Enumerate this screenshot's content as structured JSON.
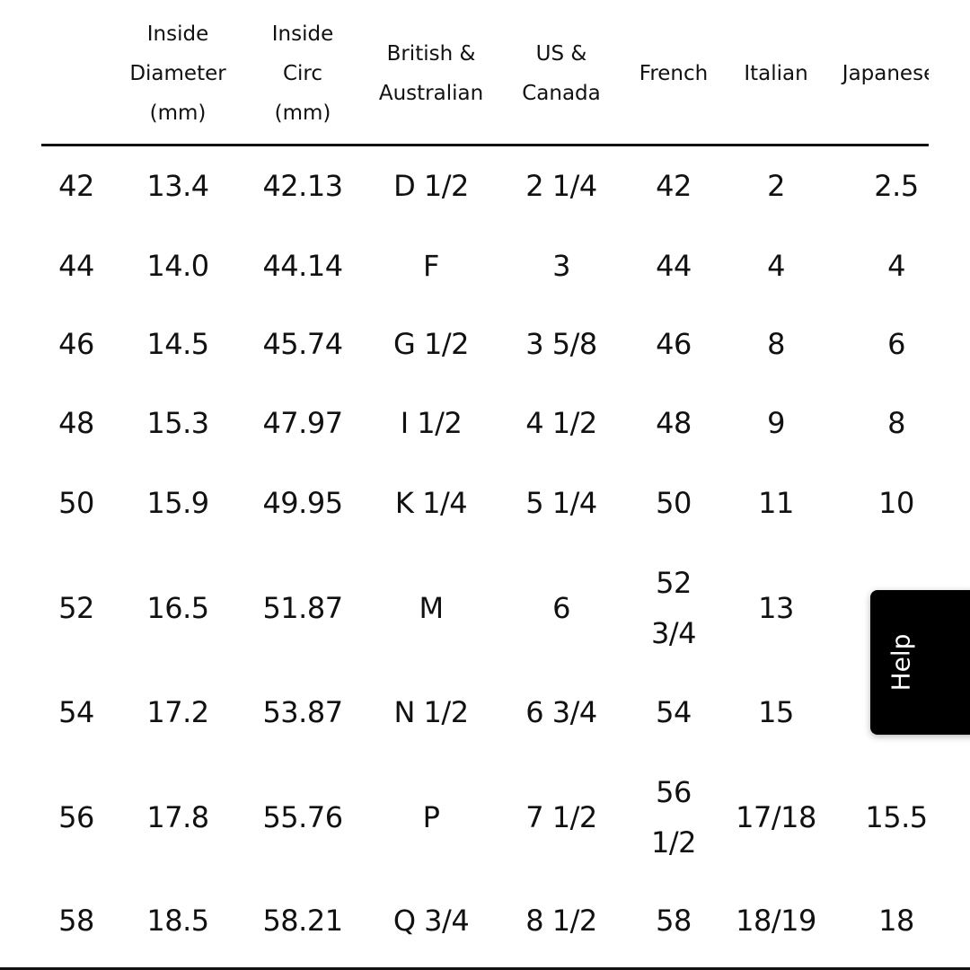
{
  "table": {
    "headers": [
      "",
      "Inside\nDiameter\n(mm)",
      "Inside\nCirc\n(mm)",
      "British &\nAustralian",
      "US &\nCanada",
      "French",
      "Italian",
      "Japanese"
    ],
    "rows": [
      [
        "42",
        "13.4",
        "42.13",
        "D 1/2",
        "2 1/4",
        "42",
        "2",
        "2.5"
      ],
      [
        "44",
        "14.0",
        "44.14",
        "F",
        "3",
        "44",
        "4",
        "4"
      ],
      [
        "46",
        "14.5",
        "45.74",
        "G 1/2",
        "3 5/8",
        "46",
        "8",
        "6"
      ],
      [
        "48",
        "15.3",
        "47.97",
        "I 1/2",
        "4 1/2",
        "48",
        "9",
        "8"
      ],
      [
        "50",
        "15.9",
        "49.95",
        "K 1/4",
        "5 1/4",
        "50",
        "11",
        "10"
      ],
      [
        "52",
        "16.5",
        "51.87",
        "M",
        "6",
        "52\n3/4",
        "13",
        ""
      ],
      [
        "54",
        "17.2",
        "53.87",
        "N 1/2",
        "6 3/4",
        "54",
        "15",
        ""
      ],
      [
        "56",
        "17.8",
        "55.76",
        "P",
        "7 1/2",
        "56\n1/2",
        "17/18",
        "15.5"
      ],
      [
        "58",
        "18.5",
        "58.21",
        "Q 3/4",
        "8 1/2",
        "58",
        "18/19",
        "18"
      ]
    ]
  },
  "help_button": {
    "label": "Help"
  }
}
